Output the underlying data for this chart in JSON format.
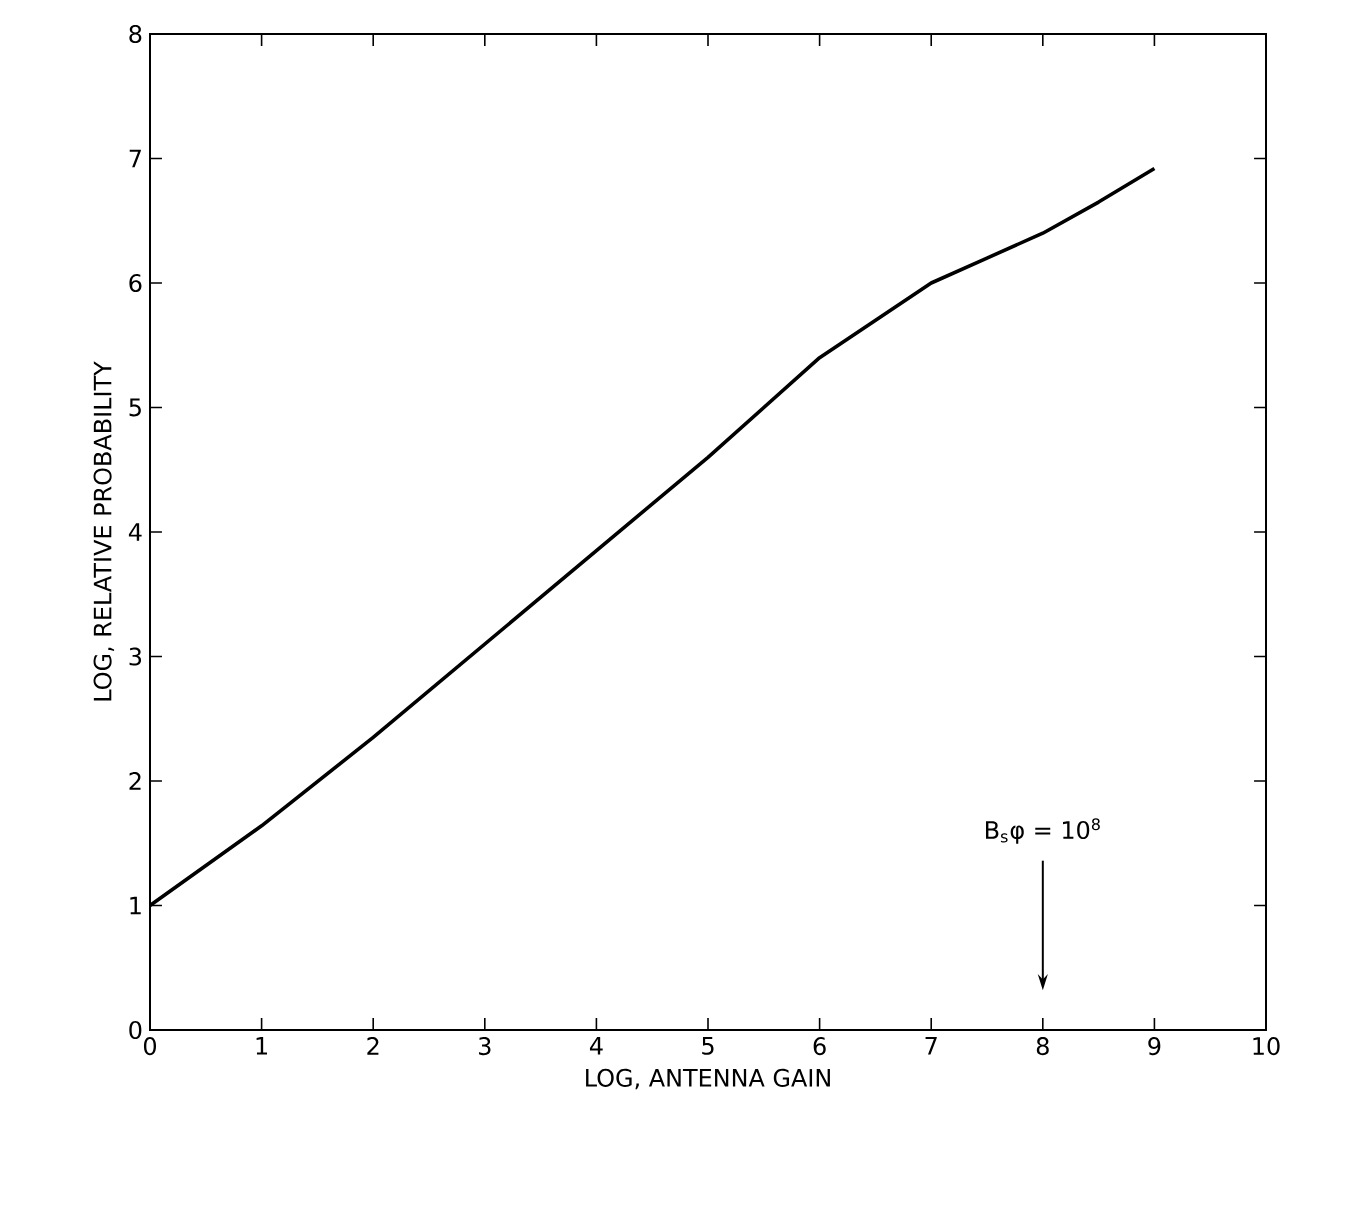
{
  "chart_data": {
    "type": "line",
    "xlabel": "LOG, ANTENNA GAIN",
    "ylabel": "LOG, RELATIVE PROBABILITY",
    "x": [
      0,
      1,
      2,
      3,
      4,
      5,
      6,
      7,
      7.5,
      8,
      8.5,
      9
    ],
    "values": [
      1,
      1.64,
      2.35,
      3.1,
      3.85,
      4.6,
      5.4,
      6.0,
      6.2,
      6.4,
      6.65,
      6.92
    ],
    "color": "#000000",
    "marker": "none",
    "line_style": "solid",
    "grid": false,
    "xlim": [
      0,
      10
    ],
    "ylim": [
      0,
      8
    ],
    "xticks": [
      0,
      1,
      2,
      3,
      4,
      5,
      6,
      7,
      8,
      9,
      10
    ],
    "yticks": [
      0,
      1,
      2,
      3,
      4,
      5,
      6,
      7,
      8
    ],
    "annotations": [
      "B$_{s}$φ = 10$^{8}$"
    ]
  }
}
